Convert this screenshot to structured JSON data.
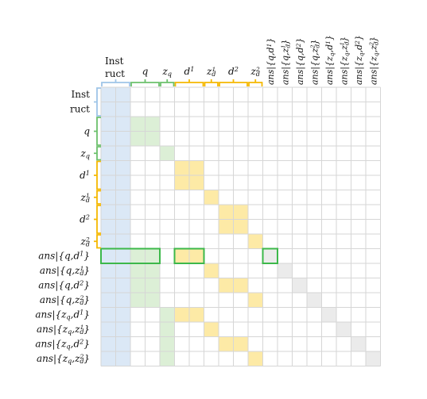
{
  "labels": {
    "inst_line1": "Inst",
    "inst_line2": "ruct",
    "q": "q",
    "zq": "z_q",
    "d1": "d^1",
    "zd1": "z_d^1",
    "d2": "d^2",
    "zd2": "z_d^2",
    "ans": [
      "ans|{q,d^1}",
      "ans|{q,z_d^1}",
      "ans|{q,d^2}",
      "ans|{q,z_d^2}",
      "ans|{z_q,d^1}",
      "ans|{z_q,z_d^1}",
      "ans|{z_q,d^2}",
      "ans|{z_q,z_d^2}"
    ]
  },
  "colors": {
    "grid": "#d6d6d6",
    "instruct": "#dbe8f6",
    "query": "#dcefd6",
    "doc": "#fdeaa6",
    "answer": "#ebebeb",
    "brace_instruct": "#9fc5e8",
    "brace_query": "#6cc06c",
    "brace_doc": "#f5b800",
    "highlight_box": "#3cb84a"
  }
}
